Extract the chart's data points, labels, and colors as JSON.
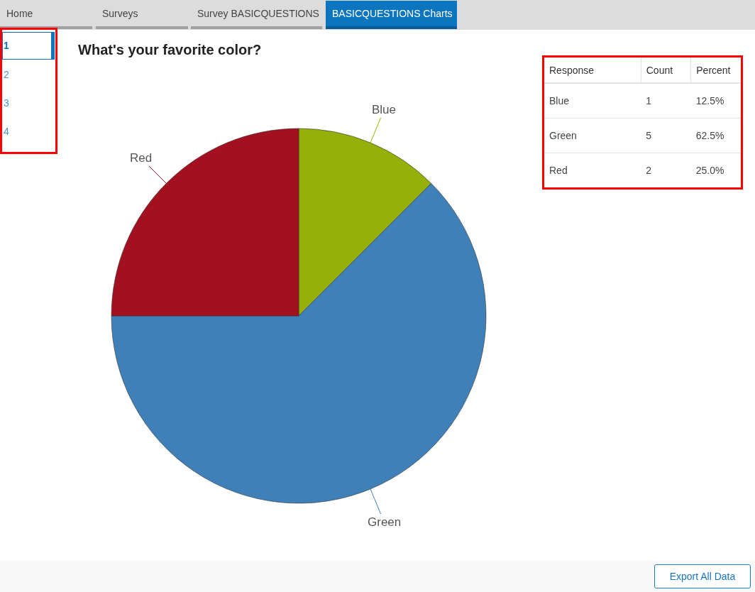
{
  "chart_data": [
    {
      "type": "pie",
      "title": "What's your favorite color?",
      "categories": [
        "Blue",
        "Green",
        "Red"
      ],
      "values": [
        12.5,
        62.5,
        25.0
      ],
      "colors": [
        "#95b00a",
        "#4080b8",
        "#a31020"
      ],
      "annotations": [
        "Home",
        "Surveys",
        "Survey BASICQUESTIONS",
        "BASICQUESTIONS Charts",
        "1",
        "2",
        "3",
        "4",
        "Export All Data"
      ]
    },
    {
      "type": "other",
      "annotations": [
        "Response",
        "Count",
        "Percent",
        "Blue",
        "1",
        "12.5%",
        "Green",
        "5",
        "62.5%",
        "Red",
        "2",
        "25.0%"
      ]
    }
  ]
}
